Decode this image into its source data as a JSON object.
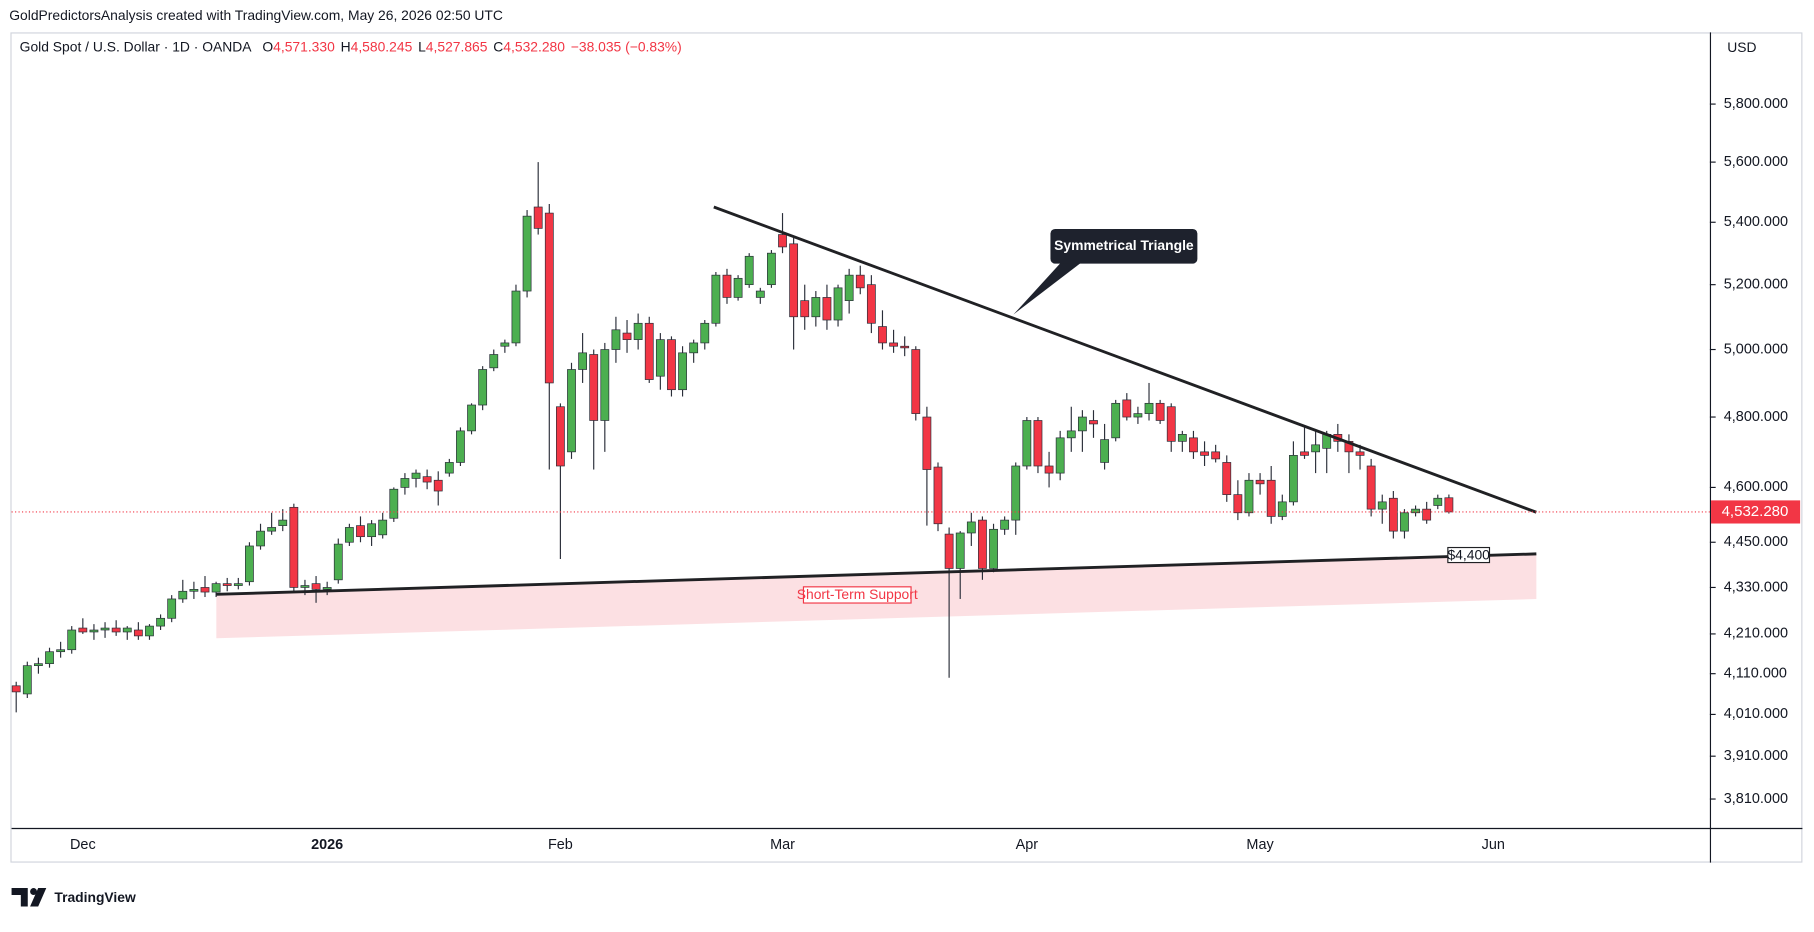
{
  "header": "GoldPredictorsAnalysis created with TradingView.com, May 26, 2026 02:50 UTC",
  "branding": "TradingView",
  "chart_data": {
    "type": "candlestick",
    "symbol": "Gold Spot / U.S. Dollar · 1D · OANDA",
    "legend": [
      {
        "key": "O",
        "text": "4,571.330"
      },
      {
        "key": "H",
        "text": "4,580.245"
      },
      {
        "key": "L",
        "text": "4,527.865"
      },
      {
        "key": "C",
        "text": "4,532.280"
      }
    ],
    "change": "−38.035 (−0.83%)",
    "currency": "USD",
    "last_price_label": "4,532.280",
    "log_scale": true,
    "up_color": "#4caf50",
    "down_color": "#f23645",
    "ylim": [
      3744,
      6057
    ],
    "yticks": [
      {
        "value": 5800,
        "label": "5,800.000"
      },
      {
        "value": 5600,
        "label": "5,600.000"
      },
      {
        "value": 5400,
        "label": "5,400.000"
      },
      {
        "value": 5200,
        "label": "5,200.000"
      },
      {
        "value": 5000,
        "label": "5,000.000"
      },
      {
        "value": 4800,
        "label": "4,800.000"
      },
      {
        "value": 4600,
        "label": "4,600.000"
      },
      {
        "value": 4450,
        "label": "4,450.000"
      },
      {
        "value": 4330,
        "label": "4,330.000"
      },
      {
        "value": 4210,
        "label": "4,210.000"
      },
      {
        "value": 4110,
        "label": "4,110.000"
      },
      {
        "value": 4010,
        "label": "4,010.000"
      },
      {
        "value": 3910,
        "label": "3,910.000"
      },
      {
        "value": 3810,
        "label": "3,810.000"
      }
    ],
    "categories": [
      null,
      null,
      null,
      null,
      null,
      null,
      "Dec",
      null,
      null,
      null,
      null,
      null,
      null,
      null,
      null,
      null,
      null,
      null,
      null,
      null,
      null,
      null,
      null,
      null,
      null,
      null,
      null,
      null,
      "2026",
      null,
      null,
      null,
      null,
      null,
      null,
      null,
      null,
      null,
      null,
      null,
      null,
      null,
      null,
      null,
      null,
      null,
      null,
      null,
      null,
      "Feb",
      null,
      null,
      null,
      null,
      null,
      null,
      null,
      null,
      null,
      null,
      null,
      null,
      null,
      null,
      null,
      null,
      null,
      null,
      null,
      "Mar",
      null,
      null,
      null,
      null,
      null,
      null,
      null,
      null,
      null,
      null,
      null,
      null,
      null,
      null,
      null,
      null,
      null,
      null,
      null,
      null,
      null,
      "Apr",
      null,
      null,
      null,
      null,
      null,
      null,
      null,
      null,
      null,
      null,
      null,
      null,
      null,
      null,
      null,
      null,
      null,
      null,
      null,
      null,
      "May",
      null,
      null,
      null,
      null,
      null,
      null,
      null,
      null,
      null,
      null,
      null,
      null,
      null,
      null,
      null,
      null,
      null,
      null,
      null,
      null,
      "Jun"
    ],
    "candles": {
      "open": [
        4080,
        4060,
        4130,
        4135,
        4165,
        4170,
        4225,
        4215,
        4220,
        4225,
        4215,
        4220,
        4205,
        4230,
        4250,
        4300,
        4320,
        4330,
        4318,
        4340,
        4335,
        4345,
        4440,
        4480,
        4495,
        4545,
        4330,
        4340,
        4325,
        4350,
        4450,
        4495,
        4465,
        4470,
        4515,
        4600,
        4625,
        4630,
        4620,
        4640,
        4670,
        4760,
        4835,
        4945,
        5010,
        5020,
        5180,
        5450,
        5430,
        4830,
        4700,
        4940,
        4985,
        4790,
        5000,
        5050,
        5030,
        5080,
        4920,
        5030,
        4880,
        4990,
        5020,
        5080,
        5230,
        5160,
        5200,
        5160,
        5200,
        5360,
        5330,
        5150,
        5100,
        5160,
        5090,
        5150,
        5230,
        5200,
        5070,
        5020,
        5010,
        5000,
        4800,
        4657,
        4472,
        4380,
        4475,
        4510,
        4380,
        4485,
        4510,
        4660,
        4790,
        4660,
        4640,
        4740,
        4760,
        4790,
        4670,
        4740,
        4850,
        4800,
        4810,
        4840,
        4830,
        4730,
        4740,
        4700,
        4700,
        4670,
        4580,
        4530,
        4620,
        4620,
        4520,
        4560,
        4700,
        4700,
        4710,
        4750,
        4730,
        4700,
        4660,
        4540,
        4570,
        4480,
        4530,
        4540,
        4550,
        4571.33,
        null,
        null,
        null,
        null
      ],
      "high": [
        4090,
        4140,
        4150,
        4175,
        4190,
        4230,
        4250,
        4235,
        4240,
        4245,
        4230,
        4240,
        4235,
        4260,
        4310,
        4350,
        4345,
        4360,
        4345,
        4355,
        4355,
        4450,
        4500,
        4530,
        4540,
        4555,
        4350,
        4360,
        4345,
        4460,
        4500,
        4520,
        4510,
        4530,
        4600,
        4640,
        4650,
        4650,
        4645,
        4680,
        4770,
        4840,
        4950,
        5000,
        5030,
        5200,
        5440,
        5600,
        5460,
        4840,
        4960,
        5050,
        5000,
        5020,
        5100,
        5090,
        5110,
        5100,
        5050,
        5040,
        5010,
        5030,
        5090,
        5240,
        5250,
        5230,
        5300,
        5190,
        5310,
        5430,
        5350,
        5200,
        5180,
        5200,
        5200,
        5250,
        5260,
        5230,
        5120,
        5060,
        5040,
        5010,
        4830,
        4670,
        4490,
        4480,
        4530,
        4520,
        4500,
        4520,
        4670,
        4800,
        4800,
        4700,
        4760,
        4830,
        4820,
        4820,
        4780,
        4850,
        4870,
        4830,
        4900,
        4850,
        4840,
        4760,
        4760,
        4730,
        4720,
        4690,
        4620,
        4640,
        4640,
        4660,
        4580,
        4730,
        4770,
        4760,
        4760,
        4780,
        4750,
        4720,
        4680,
        4580,
        4590,
        4540,
        4550,
        4560,
        4580,
        4580.245,
        null,
        null,
        null,
        null
      ],
      "low": [
        4015,
        4050,
        4110,
        4125,
        4150,
        4160,
        4210,
        4195,
        4200,
        4205,
        4195,
        4195,
        4195,
        4220,
        4240,
        4290,
        4300,
        4305,
        4305,
        4320,
        4325,
        4335,
        4430,
        4470,
        4480,
        4320,
        4310,
        4290,
        4310,
        4340,
        4440,
        4450,
        4440,
        4460,
        4505,
        4580,
        4600,
        4595,
        4550,
        4630,
        4660,
        4750,
        4820,
        4935,
        4990,
        5010,
        5160,
        5360,
        4650,
        4405,
        4680,
        4900,
        4650,
        4700,
        4960,
        4990,
        5000,
        4900,
        4880,
        4860,
        4860,
        4960,
        5000,
        5070,
        5140,
        5150,
        5190,
        5140,
        5190,
        5300,
        5000,
        5060,
        5070,
        5060,
        5070,
        5110,
        5170,
        5050,
        5000,
        4990,
        4980,
        4790,
        4495,
        4480,
        4100,
        4300,
        4440,
        4350,
        4370,
        4470,
        4470,
        4650,
        4640,
        4600,
        4620,
        4700,
        4700,
        4740,
        4650,
        4730,
        4790,
        4780,
        4790,
        4780,
        4700,
        4700,
        4680,
        4660,
        4670,
        4560,
        4510,
        4520,
        4580,
        4500,
        4510,
        4550,
        4680,
        4640,
        4640,
        4700,
        4640,
        4650,
        4520,
        4500,
        4460,
        4460,
        4520,
        4500,
        4540,
        4527.865,
        null,
        null,
        null,
        null
      ],
      "close": [
        4065,
        4130,
        4135,
        4165,
        4170,
        4220,
        4215,
        4220,
        4225,
        4215,
        4225,
        4205,
        4230,
        4250,
        4300,
        4320,
        4325,
        4318,
        4340,
        4335,
        4340,
        4440,
        4480,
        4490,
        4510,
        4330,
        4335,
        4325,
        4330,
        4445,
        4490,
        4465,
        4500,
        4510,
        4595,
        4625,
        4640,
        4615,
        4590,
        4670,
        4760,
        4835,
        4940,
        4985,
        5020,
        5180,
        5420,
        5380,
        4900,
        4660,
        4940,
        4990,
        4790,
        5000,
        5060,
        5030,
        5080,
        4910,
        5030,
        4880,
        4990,
        5020,
        5080,
        5230,
        5160,
        5220,
        5290,
        5180,
        5300,
        5320,
        5100,
        5100,
        5160,
        5090,
        5190,
        5230,
        5190,
        5080,
        5020,
        5010,
        5005,
        4810,
        4650,
        4500,
        4380,
        4475,
        4505,
        4380,
        4485,
        4510,
        4660,
        4790,
        4660,
        4640,
        4740,
        4760,
        4800,
        4780,
        4735,
        4840,
        4800,
        4810,
        4840,
        4790,
        4730,
        4750,
        4700,
        4690,
        4680,
        4580,
        4530,
        4620,
        4610,
        4520,
        4560,
        4690,
        4690,
        4720,
        4750,
        4730,
        4700,
        4690,
        4540,
        4560,
        4480,
        4530,
        4540,
        4510,
        4570,
        4532.28,
        null,
        null,
        null,
        null
      ]
    },
    "annotations": {
      "pattern": "Symmetrical Triangle",
      "support": "Short-Term Support",
      "support_price": "$4,400"
    }
  }
}
